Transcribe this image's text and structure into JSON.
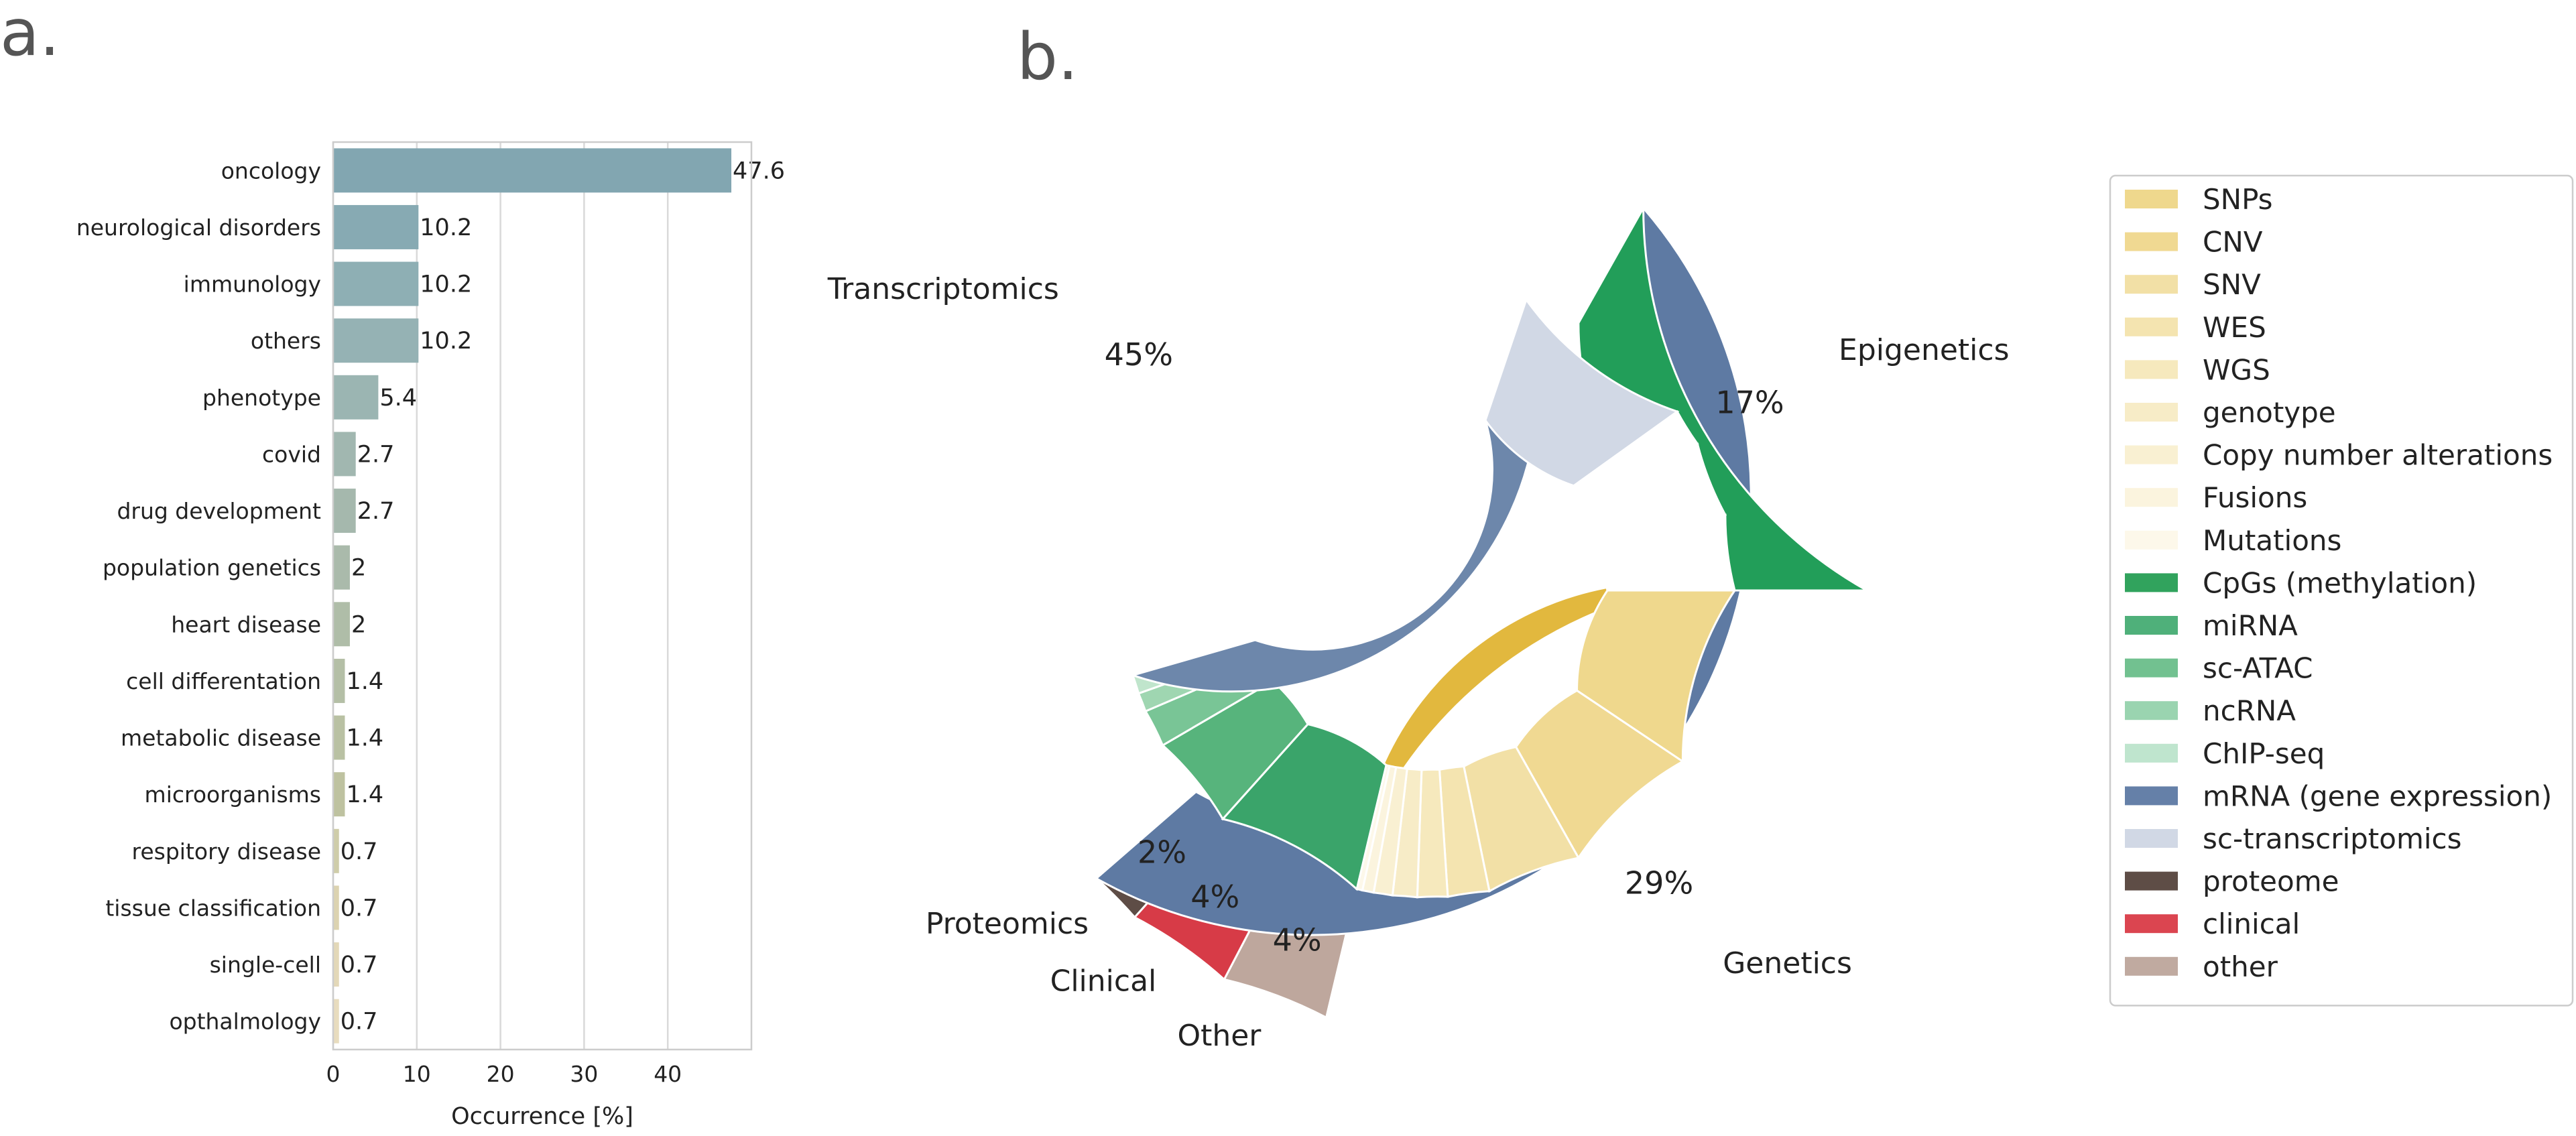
{
  "panel_a_letter": "a.",
  "panel_b_letter": "b.",
  "chart_data": [
    {
      "type": "bar",
      "orientation": "horizontal",
      "categories": [
        "oncology",
        "neurological disorders",
        "immunology",
        "others",
        "phenotype",
        "covid",
        "drug development",
        "population genetics",
        "heart disease",
        "cell differentation",
        "metabolic disease",
        "microorganisms",
        "respitory disease",
        "tissue classification",
        "single-cell",
        "opthalmology"
      ],
      "values": [
        47.6,
        10.2,
        10.2,
        10.2,
        5.4,
        2.7,
        2.7,
        2,
        2,
        1.4,
        1.4,
        1.4,
        0.7,
        0.7,
        0.7,
        0.7
      ],
      "value_labels": [
        "47.6",
        "10.2",
        "10.2",
        "10.2",
        "5.4",
        "2.7",
        "2.7",
        "2",
        "2",
        "1.4",
        "1.4",
        "1.4",
        "0.7",
        "0.7",
        "0.7",
        "0.7"
      ],
      "xlabel": "Occurrence [%]",
      "xlim": [
        0,
        50
      ],
      "xticks": [
        0,
        10,
        20,
        30,
        40
      ],
      "grid": "vertical",
      "bar_colors": [
        "#82a6b1",
        "#87aab3",
        "#8eafb4",
        "#95b2b4",
        "#9bb5b2",
        "#a1b7b0",
        "#a5b8ad",
        "#aabaab",
        "#afbda8",
        "#b4bfa6",
        "#b9c1a3",
        "#bec2a0",
        "#cfcda9",
        "#dcd3b0",
        "#e3d8b8",
        "#e8dcbe"
      ]
    },
    {
      "type": "pie",
      "subtype": "nested-donut",
      "outer": {
        "slices": [
          {
            "label": "Genetics",
            "value": 29,
            "pct": "29%",
            "color": "#e2b83e"
          },
          {
            "label": "Other",
            "value": 4,
            "pct": "4%",
            "color": "#bea79d"
          },
          {
            "label": "Clinical",
            "value": 4,
            "pct": "4%",
            "color": "#d73b47"
          },
          {
            "label": "Proteomics",
            "value": 2,
            "pct": "2%",
            "color": "#5e4d46"
          },
          {
            "label": "Transcriptomics",
            "value": 45,
            "pct": "45%",
            "color": "#5e7aa3"
          },
          {
            "label": "Epigenetics",
            "value": 17,
            "pct": "17%",
            "color": "#229e59"
          }
        ]
      },
      "inner": {
        "slices": [
          {
            "label": "SNPs",
            "value": 9.5,
            "color": "#efd88d"
          },
          {
            "label": "CNV",
            "value": 7.5,
            "color": "#f0d992"
          },
          {
            "label": "SNV",
            "value": 5,
            "color": "#f2e0a6"
          },
          {
            "label": "WES",
            "value": 2.2,
            "color": "#f4e4b0"
          },
          {
            "label": "WGS",
            "value": 1.6,
            "color": "#f6e9bd"
          },
          {
            "label": "genotype",
            "value": 1.3,
            "color": "#f7ecc7"
          },
          {
            "label": "Copy number alterations",
            "value": 1,
            "color": "#f9f0d2"
          },
          {
            "label": "Fusions",
            "value": 0.6,
            "color": "#fbf4de"
          },
          {
            "label": "Mutations",
            "value": 0.3,
            "color": "#fdf8ea"
          },
          {
            "label": "CpGs (methylation)",
            "value": 8,
            "color": "#3aa46a"
          },
          {
            "label": "miRNA",
            "value": 5,
            "color": "#57b47c"
          },
          {
            "label": "sc-ATAC",
            "value": 2,
            "color": "#79c596"
          },
          {
            "label": "ncRNA",
            "value": 1,
            "color": "#9fd6b1"
          },
          {
            "label": "ChIP-seq",
            "value": 1,
            "color": "#c0e5cc"
          },
          {
            "label": "mRNA (gene expression)",
            "value": 35,
            "color": "#6d87ab"
          },
          {
            "label": "sc-transcriptomics",
            "value": 10,
            "color": "#d1d8e5"
          },
          {
            "label": "proteome",
            "value": 2,
            "color": "#ffffff"
          },
          {
            "label": "clinical",
            "value": 4,
            "color": "#ffffff"
          },
          {
            "label": "other",
            "value": 4,
            "color": "#ffffff"
          }
        ]
      },
      "legend": {
        "placement": "right",
        "items": [
          {
            "label": "SNPs",
            "color": "#efd88d"
          },
          {
            "label": "CNV",
            "color": "#f0d992"
          },
          {
            "label": "SNV",
            "color": "#f2e0a6"
          },
          {
            "label": "WES",
            "color": "#f4e4b0"
          },
          {
            "label": "WGS",
            "color": "#f6e9bd"
          },
          {
            "label": "genotype",
            "color": "#f7ecc7"
          },
          {
            "label": "Copy number alterations",
            "color": "#f9f0d2"
          },
          {
            "label": "Fusions",
            "color": "#fbf4de"
          },
          {
            "label": "Mutations",
            "color": "#fdf8ea"
          },
          {
            "label": "CpGs (methylation)",
            "color": "#31a35d"
          },
          {
            "label": "miRNA",
            "color": "#4fb07a"
          },
          {
            "label": "sc-ATAC",
            "color": "#72c190"
          },
          {
            "label": "ncRNA",
            "color": "#9ad4b0"
          },
          {
            "label": "ChIP-seq",
            "color": "#bfe5ce"
          },
          {
            "label": "mRNA (gene expression)",
            "color": "#6580a8"
          },
          {
            "label": "sc-transcriptomics",
            "color": "#d1d8e5"
          },
          {
            "label": "proteome",
            "color": "#5e4d46"
          },
          {
            "label": "clinical",
            "color": "#db4550"
          },
          {
            "label": "other",
            "color": "#c0aaa0"
          }
        ]
      }
    }
  ]
}
